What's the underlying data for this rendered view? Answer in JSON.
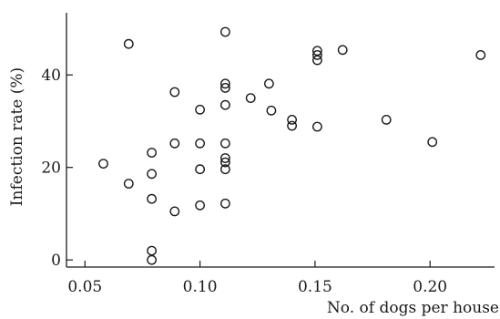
{
  "chart_data": {
    "type": "scatter",
    "title": "",
    "xlabel": "No. of dogs per house",
    "ylabel": "Infection rate (%)",
    "xlim": [
      0.05,
      0.225
    ],
    "ylim": [
      -2,
      52
    ],
    "x_ticks": [
      {
        "value": 0.05,
        "label": "0.05"
      },
      {
        "value": 0.1,
        "label": "0.10"
      },
      {
        "value": 0.15,
        "label": "0.15"
      },
      {
        "value": 0.2,
        "label": "0.20"
      }
    ],
    "y_ticks": [
      {
        "value": 0,
        "label": "0"
      },
      {
        "value": 20,
        "label": "20"
      },
      {
        "value": 40,
        "label": "40"
      }
    ],
    "grid": false,
    "legend": "none",
    "marker": "open-circle",
    "points": [
      {
        "x": 0.058,
        "y": 20.8
      },
      {
        "x": 0.069,
        "y": 46.7
      },
      {
        "x": 0.069,
        "y": 16.5
      },
      {
        "x": 0.079,
        "y": 23.2
      },
      {
        "x": 0.079,
        "y": 18.6
      },
      {
        "x": 0.079,
        "y": 13.2
      },
      {
        "x": 0.079,
        "y": 2.0
      },
      {
        "x": 0.079,
        "y": 0.0
      },
      {
        "x": 0.089,
        "y": 36.3
      },
      {
        "x": 0.089,
        "y": 25.2
      },
      {
        "x": 0.089,
        "y": 10.5
      },
      {
        "x": 0.1,
        "y": 32.5
      },
      {
        "x": 0.1,
        "y": 25.2
      },
      {
        "x": 0.1,
        "y": 19.6
      },
      {
        "x": 0.1,
        "y": 11.8
      },
      {
        "x": 0.111,
        "y": 49.3
      },
      {
        "x": 0.111,
        "y": 38.1
      },
      {
        "x": 0.111,
        "y": 37.2
      },
      {
        "x": 0.111,
        "y": 33.5
      },
      {
        "x": 0.111,
        "y": 25.2
      },
      {
        "x": 0.111,
        "y": 22.0
      },
      {
        "x": 0.111,
        "y": 21.1
      },
      {
        "x": 0.111,
        "y": 19.6
      },
      {
        "x": 0.111,
        "y": 12.2
      },
      {
        "x": 0.122,
        "y": 35.0
      },
      {
        "x": 0.13,
        "y": 38.1
      },
      {
        "x": 0.131,
        "y": 32.3
      },
      {
        "x": 0.14,
        "y": 30.3
      },
      {
        "x": 0.14,
        "y": 29.0
      },
      {
        "x": 0.151,
        "y": 45.2
      },
      {
        "x": 0.151,
        "y": 44.3
      },
      {
        "x": 0.151,
        "y": 43.2
      },
      {
        "x": 0.151,
        "y": 28.8
      },
      {
        "x": 0.162,
        "y": 45.4
      },
      {
        "x": 0.181,
        "y": 30.3
      },
      {
        "x": 0.201,
        "y": 25.5
      },
      {
        "x": 0.222,
        "y": 44.3
      }
    ]
  }
}
